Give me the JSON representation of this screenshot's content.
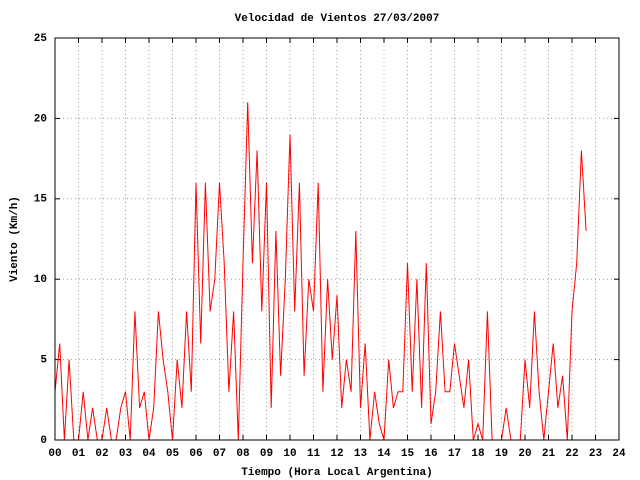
{
  "chart_data": {
    "type": "line",
    "title": "Velocidad de Vientos 27/03/2007",
    "xlabel": "Tiempo (Hora Local Argentina)",
    "ylabel": "Viento (Km/h)",
    "x": [
      0,
      0.2,
      0.4,
      0.6,
      0.8,
      1,
      1.2,
      1.4,
      1.6,
      1.8,
      2,
      2.2,
      2.4,
      2.6,
      2.8,
      3,
      3.2,
      3.4,
      3.6,
      3.8,
      4,
      4.2,
      4.4,
      4.6,
      4.8,
      5,
      5.2,
      5.4,
      5.6,
      5.8,
      6,
      6.2,
      6.4,
      6.6,
      6.8,
      7,
      7.2,
      7.4,
      7.6,
      7.8,
      8,
      8.2,
      8.4,
      8.6,
      8.8,
      9,
      9.2,
      9.4,
      9.6,
      9.8,
      10,
      10.2,
      10.4,
      10.6,
      10.8,
      11,
      11.2,
      11.4,
      11.6,
      11.8,
      12,
      12.2,
      12.4,
      12.6,
      12.8,
      13,
      13.2,
      13.4,
      13.6,
      13.8,
      14,
      14.2,
      14.4,
      14.6,
      14.8,
      15,
      15.2,
      15.4,
      15.6,
      15.8,
      16,
      16.2,
      16.4,
      16.6,
      16.8,
      17,
      17.2,
      17.4,
      17.6,
      17.8,
      18,
      18.2,
      18.4,
      18.6,
      18.8,
      19,
      19.2,
      19.4,
      19.6,
      19.8,
      20,
      20.2,
      20.4,
      20.6,
      20.8,
      21,
      21.2,
      21.4,
      21.6,
      21.8,
      22,
      22.2,
      22.4,
      22.6
    ],
    "series": [
      {
        "name": "Viento",
        "color": "#ff0000",
        "values": [
          3,
          6,
          0,
          5,
          0,
          0,
          3,
          0,
          2,
          0,
          0,
          2,
          0,
          0,
          2,
          3,
          0,
          8,
          2,
          3,
          0,
          2,
          8,
          5,
          3,
          0,
          5,
          2,
          8,
          3,
          16,
          6,
          16,
          8,
          10,
          16,
          11,
          3,
          8,
          0,
          11,
          21,
          11,
          18,
          8,
          16,
          2,
          13,
          4,
          10,
          19,
          8,
          16,
          4,
          10,
          8,
          16,
          3,
          10,
          5,
          9,
          2,
          5,
          3,
          13,
          2,
          6,
          0,
          3,
          1,
          0,
          5,
          2,
          3,
          3,
          11,
          3,
          10,
          2,
          11,
          1,
          3,
          8,
          3,
          3,
          6,
          4,
          2,
          5,
          0,
          1,
          0,
          8,
          0,
          0,
          0,
          2,
          0,
          0,
          0,
          5,
          2,
          8,
          3,
          0,
          3,
          6,
          2,
          4,
          0,
          8,
          11,
          18,
          13
        ]
      }
    ],
    "xlim": [
      0,
      24
    ],
    "xticks": [
      {
        "value": 0,
        "label": "00"
      },
      {
        "value": 1,
        "label": "01"
      },
      {
        "value": 2,
        "label": "02"
      },
      {
        "value": 3,
        "label": "03"
      },
      {
        "value": 4,
        "label": "04"
      },
      {
        "value": 5,
        "label": "05"
      },
      {
        "value": 6,
        "label": "06"
      },
      {
        "value": 7,
        "label": "07"
      },
      {
        "value": 8,
        "label": "08"
      },
      {
        "value": 9,
        "label": "09"
      },
      {
        "value": 10,
        "label": "10"
      },
      {
        "value": 11,
        "label": "11"
      },
      {
        "value": 12,
        "label": "12"
      },
      {
        "value": 13,
        "label": "13"
      },
      {
        "value": 14,
        "label": "14"
      },
      {
        "value": 15,
        "label": "15"
      },
      {
        "value": 16,
        "label": "16"
      },
      {
        "value": 17,
        "label": "17"
      },
      {
        "value": 18,
        "label": "18"
      },
      {
        "value": 19,
        "label": "19"
      },
      {
        "value": 20,
        "label": "20"
      },
      {
        "value": 21,
        "label": "21"
      },
      {
        "value": 22,
        "label": "22"
      },
      {
        "value": 23,
        "label": "23"
      },
      {
        "value": 24,
        "label": "24"
      }
    ],
    "ylim": [
      0,
      25
    ],
    "yticks": [
      0,
      5,
      10,
      15,
      20,
      25
    ],
    "grid": true
  }
}
